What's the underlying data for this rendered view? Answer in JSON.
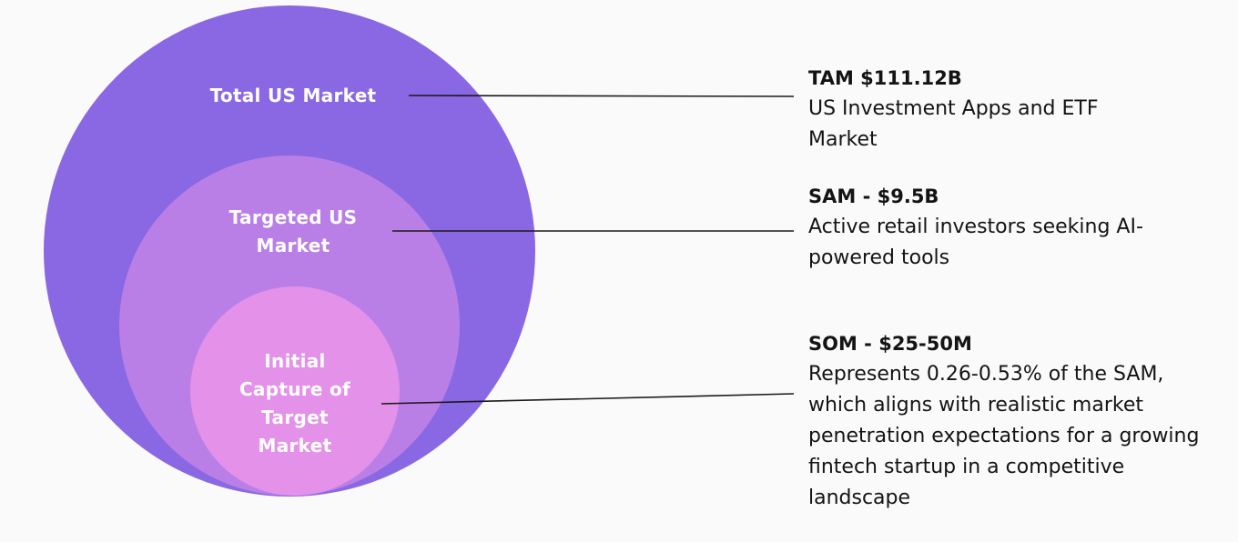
{
  "colors": {
    "background": "#fafafa",
    "tam_circle": "#8a67e3",
    "sam_circle": "#b97fe6",
    "som_circle": "#e391e9",
    "connector": "#1a1a1a",
    "label_text": "#ffffff",
    "desc_text": "#141414"
  },
  "circles": {
    "tam": {
      "label": "Total US Market"
    },
    "sam": {
      "label": "Targeted US Market"
    },
    "som": {
      "label": "Initial Capture of Target Market"
    }
  },
  "descriptions": {
    "tam": {
      "heading": "TAM $111.12B",
      "text": "US Investment Apps and ETF Market"
    },
    "sam": {
      "heading": "SAM - $9.5B",
      "text": "Active retail investors seeking AI-powered tools"
    },
    "som": {
      "heading": "SOM - $25-50M",
      "text": "Represents 0.26-0.53% of the SAM, which aligns with realistic market penetration expectations for a growing fintech startup in a competitive landscape"
    }
  }
}
